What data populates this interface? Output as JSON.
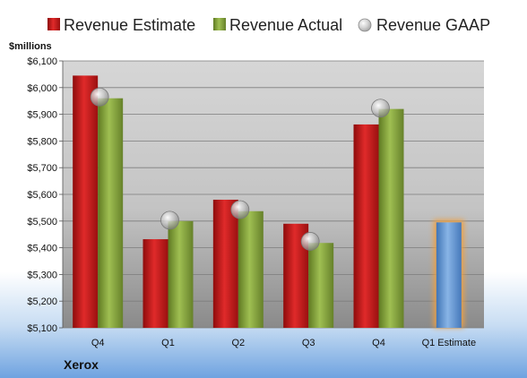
{
  "chart_data": {
    "type": "bar",
    "unit_label": "$millions",
    "brand": "Xerox",
    "categories": [
      "Q4",
      "Q1",
      "Q2",
      "Q3",
      "Q4",
      "Q1 Estimate"
    ],
    "ylim": [
      5100,
      6100
    ],
    "y_ticks": [
      "$5,100",
      "$5,200",
      "$5,300",
      "$5,400",
      "$5,500",
      "$5,600",
      "$5,700",
      "$5,800",
      "$5,900",
      "$6,000",
      "$6,100"
    ],
    "grid": true,
    "legend_position": "top",
    "series": [
      {
        "name": "Revenue Estimate",
        "type": "bar",
        "color": "#cc1f1f",
        "values": [
          6045,
          5432,
          5580,
          5490,
          5862,
          5495
        ]
      },
      {
        "name": "Revenue Actual",
        "type": "bar",
        "color": "#8aaa3c",
        "values": [
          5960,
          5500,
          5537,
          5418,
          5920,
          null
        ]
      },
      {
        "name": "Revenue GAAP",
        "type": "marker",
        "color": "#a9a9a9",
        "values": [
          5965,
          5503,
          5543,
          5424,
          5923,
          null
        ]
      }
    ],
    "estimate_bar_color": "#6a9fd8",
    "estimate_glow_color": "#f0a040"
  }
}
